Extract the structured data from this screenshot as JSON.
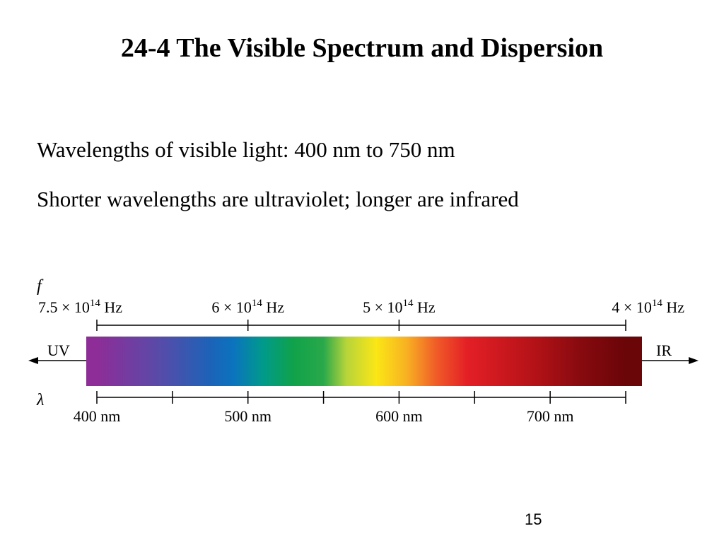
{
  "slide": {
    "title": "24-4 The Visible Spectrum and Dispersion",
    "bullets": [
      "Wavelengths of visible light: 400 nm to 750 nm",
      "Shorter wavelengths are ultraviolet; longer are infrared"
    ],
    "page_number": "15"
  },
  "spectrum": {
    "frequency_symbol": "f",
    "wavelength_symbol": "λ",
    "left_region_label": "UV",
    "right_region_label": "IR",
    "frequency_unit": "Hz",
    "wavelength_unit": "nm",
    "wavelength_range_nm": [
      400,
      750
    ],
    "frequency_labels": [
      {
        "mantissa": "7.5",
        "exponent": "14",
        "wavelength_nm": 400
      },
      {
        "mantissa": "6",
        "exponent": "14",
        "wavelength_nm": 500
      },
      {
        "mantissa": "5",
        "exponent": "14",
        "wavelength_nm": 600
      },
      {
        "mantissa": "4",
        "exponent": "14",
        "wavelength_nm": 750
      }
    ],
    "wavelength_ticks_nm": [
      400,
      450,
      500,
      550,
      600,
      650,
      700,
      750
    ],
    "wavelength_labels": [
      {
        "value": 400,
        "text": "400 nm"
      },
      {
        "value": 500,
        "text": "500 nm"
      },
      {
        "value": 600,
        "text": "600 nm"
      },
      {
        "value": 700,
        "text": "700 nm"
      }
    ],
    "color_stops": [
      {
        "wavelength_nm": 400,
        "color": "#8e2d98"
      },
      {
        "wavelength_nm": 440,
        "color": "#5a4aa8"
      },
      {
        "wavelength_nm": 475,
        "color": "#1c63b8"
      },
      {
        "wavelength_nm": 490,
        "color": "#0b73be"
      },
      {
        "wavelength_nm": 510,
        "color": "#009a8a"
      },
      {
        "wavelength_nm": 530,
        "color": "#10a24a"
      },
      {
        "wavelength_nm": 550,
        "color": "#2aa84a"
      },
      {
        "wavelength_nm": 565,
        "color": "#b7d43a"
      },
      {
        "wavelength_nm": 585,
        "color": "#fbe616"
      },
      {
        "wavelength_nm": 605,
        "color": "#f8b123"
      },
      {
        "wavelength_nm": 625,
        "color": "#f05a28"
      },
      {
        "wavelength_nm": 645,
        "color": "#e41f26"
      },
      {
        "wavelength_nm": 690,
        "color": "#b31217"
      },
      {
        "wavelength_nm": 720,
        "color": "#870a0f"
      },
      {
        "wavelength_nm": 750,
        "color": "#6a0508"
      }
    ]
  }
}
